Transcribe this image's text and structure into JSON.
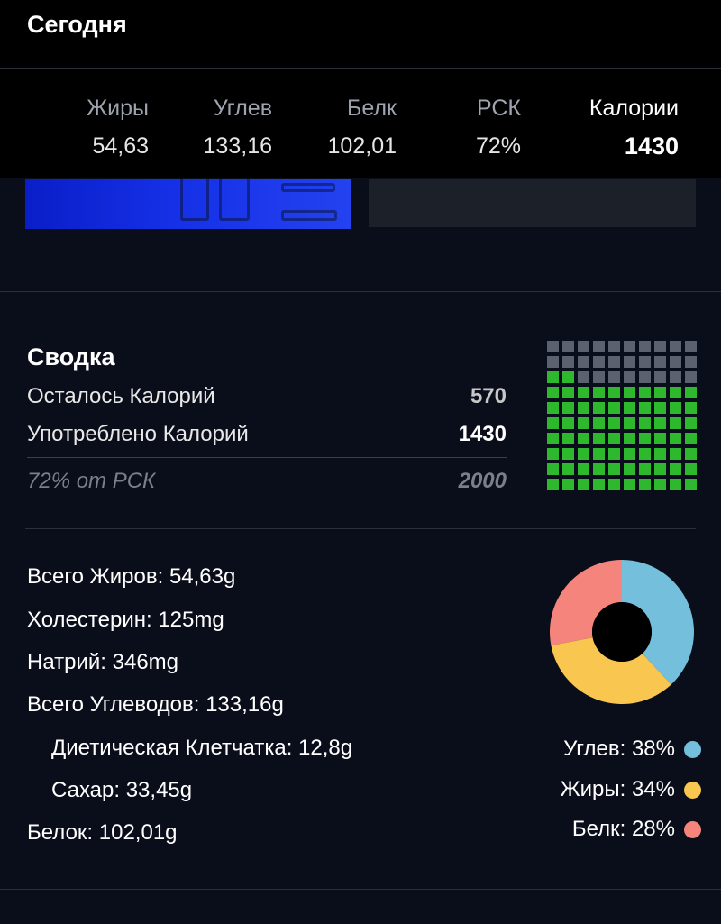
{
  "header": {
    "title": "Сегодня"
  },
  "macros": {
    "fat": {
      "label": "Жиры",
      "value": "54,63"
    },
    "carbs": {
      "label": "Углев",
      "value": "133,16"
    },
    "protein": {
      "label": "Белк",
      "value": "102,01"
    },
    "rsk": {
      "label": "РСК",
      "value": "72%"
    },
    "calories": {
      "label": "Калории",
      "value": "1430"
    }
  },
  "summary": {
    "title": "Сводка",
    "remaining": {
      "label": "Осталось Калорий",
      "value": "570"
    },
    "consumed": {
      "label": "Употреблено Калорий",
      "value": "1430"
    },
    "rsk": {
      "label": "72% от РСК",
      "value": "2000"
    },
    "waffle": {
      "total_cells": 100,
      "filled_cells": 72,
      "fill_color": "#2eb82e",
      "empty_color": "#5c6170"
    }
  },
  "nutrients": {
    "total_fat": "Всего Жиров: 54,63g",
    "cholesterol": "Холестерин: 125mg",
    "sodium": "Натрий: 346mg",
    "total_carbs": "Всего Углеводов: 133,16g",
    "fiber": "Диетическая Клетчатка: 12,8g",
    "sugar": "Сахар: 33,45g",
    "protein": "Белок: 102,01g"
  },
  "chart_data": {
    "type": "pie",
    "categories": [
      "Углев",
      "Жиры",
      "Белк"
    ],
    "values": [
      38,
      34,
      28
    ],
    "colors": [
      "#74c0dc",
      "#f9c74f",
      "#f4847c"
    ],
    "legend": [
      "Углев: 38%",
      "Жиры: 34%",
      "Белк: 28%"
    ],
    "donut": true
  }
}
